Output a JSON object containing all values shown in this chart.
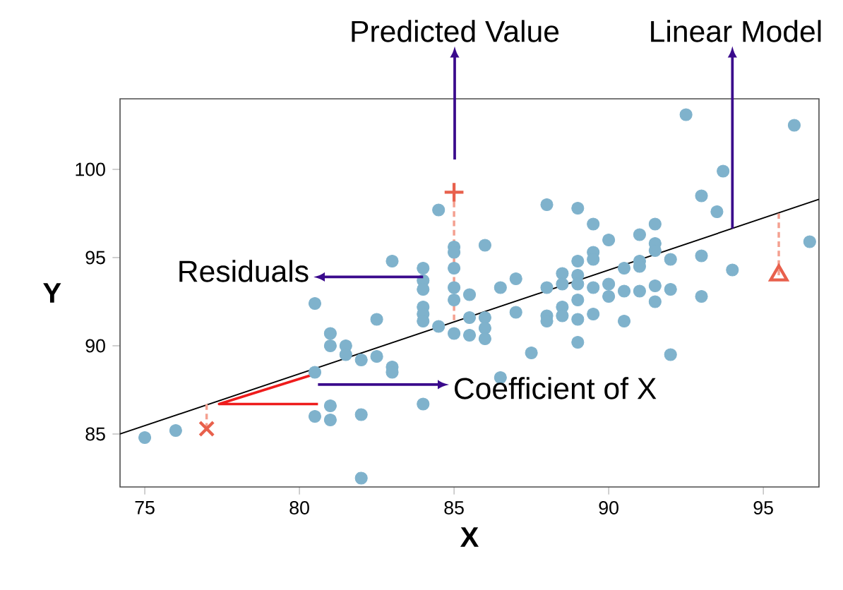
{
  "chart_data": {
    "type": "scatter",
    "xlabel": "X",
    "ylabel": "Y",
    "xlim": [
      74.2,
      96.8
    ],
    "ylim": [
      82,
      104
    ],
    "xticks": [
      75,
      80,
      85,
      90,
      95
    ],
    "yticks": [
      85,
      90,
      95,
      100
    ],
    "series": [
      {
        "marker": "circle",
        "color": "#7fb2cc",
        "x": [
          75.0,
          76.0,
          80.5,
          81.0,
          81.0,
          81.5,
          81.5,
          82.0,
          80.5,
          81.0,
          80.5,
          81.0,
          82.0,
          82.0,
          84.5,
          83.0,
          82.5,
          82.5,
          83.0,
          83.0,
          84.0,
          84.0,
          84.0,
          84.0,
          84.0,
          84.0,
          84.0,
          84.5,
          85.0,
          85.0,
          85.0,
          85.0,
          85.0,
          85.0,
          85.5,
          85.5,
          85.5,
          86.0,
          86.0,
          86.0,
          86.0,
          86.5,
          86.5,
          87.0,
          87.0,
          87.5,
          88.0,
          88.0,
          88.0,
          88.0,
          88.5,
          88.5,
          88.5,
          88.5,
          89.0,
          89.0,
          89.0,
          89.0,
          89.0,
          89.0,
          89.0,
          89.5,
          89.5,
          89.5,
          89.5,
          89.5,
          90.0,
          90.0,
          90.0,
          90.5,
          90.5,
          90.5,
          91.0,
          91.0,
          91.0,
          91.0,
          91.5,
          91.5,
          91.5,
          91.5,
          91.5,
          92.0,
          92.0,
          92.0,
          92.5,
          93.0,
          93.0,
          93.0,
          93.5,
          93.7,
          94.0,
          96.0,
          96.5
        ],
        "values": [
          84.8,
          85.2,
          92.4,
          90.7,
          90.0,
          90.0,
          89.5,
          89.2,
          88.5,
          86.6,
          86.0,
          85.8,
          86.1,
          82.5,
          97.7,
          94.8,
          91.5,
          89.4,
          88.8,
          88.5,
          86.7,
          94.4,
          93.7,
          93.2,
          92.2,
          91.8,
          91.4,
          91.1,
          95.6,
          95.3,
          94.4,
          93.3,
          92.6,
          90.7,
          92.9,
          91.6,
          90.6,
          95.7,
          91.6,
          91.0,
          90.4,
          93.3,
          88.2,
          93.8,
          91.9,
          89.6,
          98.0,
          93.3,
          91.7,
          91.4,
          94.1,
          93.5,
          92.2,
          91.7,
          97.8,
          94.8,
          94.0,
          93.5,
          92.6,
          91.5,
          90.2,
          96.9,
          95.3,
          94.9,
          93.3,
          91.8,
          96.0,
          93.5,
          92.8,
          94.4,
          93.1,
          91.4,
          96.3,
          94.8,
          94.5,
          93.1,
          96.9,
          95.8,
          95.4,
          93.4,
          92.5,
          94.9,
          93.2,
          89.5,
          103.1,
          98.5,
          95.1,
          92.8,
          97.6,
          99.9,
          94.3,
          102.5,
          95.9
        ]
      },
      {
        "type": "line",
        "line_style": "solid",
        "color": "#000000",
        "x": [
          74.2,
          96.8
        ],
        "values": [
          85.0,
          98.3
        ]
      },
      {
        "type": "line",
        "line_style": "dashed",
        "color": "#f4a090",
        "x": [
          77.0,
          77.0
        ],
        "values": [
          85.3,
          86.7
        ]
      },
      {
        "type": "line",
        "line_style": "dashed",
        "color": "#f4a090",
        "x": [
          85.0,
          85.0
        ],
        "values": [
          98.7,
          91.4
        ]
      },
      {
        "type": "line",
        "line_style": "dashed",
        "color": "#f4a090",
        "x": [
          95.5,
          95.5
        ],
        "values": [
          94.0,
          97.5
        ]
      },
      {
        "type": "line",
        "line_style": "solid",
        "color": "#ee1c1c",
        "x": [
          80.5,
          77.4,
          80.6
        ],
        "values": [
          88.4,
          86.7,
          86.7
        ]
      },
      {
        "marker": "cross",
        "color": "#e8604c",
        "x": [
          77.0
        ],
        "values": [
          85.3
        ]
      },
      {
        "marker": "plus",
        "color": "#e8604c",
        "x": [
          85.0
        ],
        "values": [
          98.7
        ]
      },
      {
        "marker": "triangle",
        "color": "#e8604c",
        "x": [
          95.5
        ],
        "values": [
          94.0
        ]
      }
    ],
    "annotations": [
      "Predicted Value",
      {
        "text": "Linear Model",
        "x": 94.0,
        "y": 96.65
      },
      {
        "text": "Residuals",
        "x": 84.0,
        "y": 93.9
      },
      {
        "text": "Coefficient of X",
        "x": 80.6,
        "y": 87.8
      }
    ]
  }
}
